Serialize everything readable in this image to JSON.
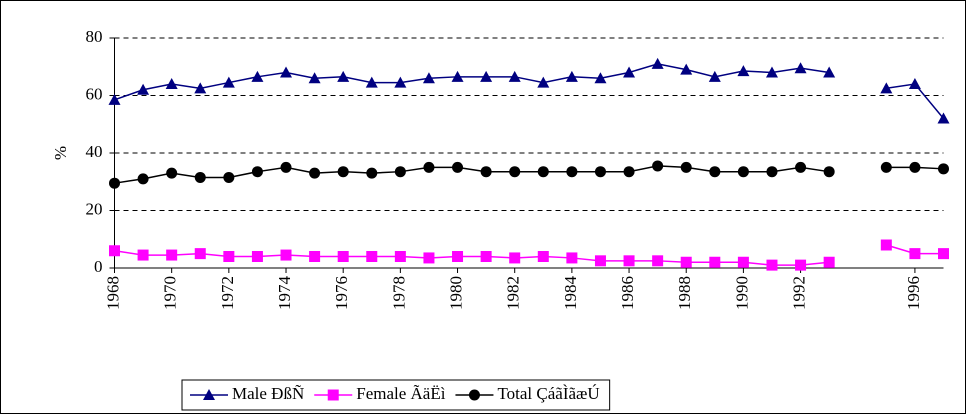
{
  "chart_data": {
    "type": "line",
    "y_label": "%",
    "x": [
      1968,
      1969,
      1970,
      1971,
      1972,
      1973,
      1974,
      1975,
      1976,
      1977,
      1978,
      1979,
      1980,
      1981,
      1982,
      1983,
      1984,
      1985,
      1986,
      1987,
      1988,
      1989,
      1990,
      1991,
      1992,
      1993,
      1994,
      1995,
      1996,
      1997
    ],
    "xlim": [
      1968,
      1997
    ],
    "xticks": [
      1968,
      1970,
      1972,
      1974,
      1976,
      1978,
      1980,
      1982,
      1984,
      1986,
      1988,
      1990,
      1992,
      1996
    ],
    "ylim": [
      0,
      80
    ],
    "yticks": [
      0,
      20,
      40,
      60,
      80
    ],
    "grid": true,
    "legend": "bottom",
    "series": [
      {
        "name": "Male ÐßÑ",
        "color": "#000080",
        "marker": "triangle",
        "values": [
          58.5,
          62,
          64,
          62.5,
          64.5,
          66.5,
          68,
          66,
          66.5,
          64.5,
          64.5,
          66,
          66.5,
          66.5,
          66.5,
          64.5,
          66.5,
          66,
          68,
          71,
          69,
          66.5,
          68.5,
          68,
          69.5,
          68,
          null,
          62.5,
          64,
          52
        ]
      },
      {
        "name": "Female ÃäËì",
        "color": "#ff00ff",
        "marker": "square",
        "values": [
          6,
          4.5,
          4.5,
          5,
          4,
          4,
          4.5,
          4,
          4,
          4,
          4,
          3.5,
          4,
          4,
          3.5,
          4,
          3.5,
          2.5,
          2.5,
          2.5,
          2,
          2,
          2,
          1,
          1,
          2,
          null,
          8,
          5,
          5
        ]
      },
      {
        "name": "Total ÇáãÌãæÚ",
        "color": "#000000",
        "marker": "circle",
        "values": [
          29.5,
          31,
          33,
          31.5,
          31.5,
          33.5,
          35,
          33,
          33.5,
          33,
          33.5,
          35,
          35,
          33.5,
          33.5,
          33.5,
          33.5,
          33.5,
          33.5,
          35.5,
          35,
          33.5,
          33.5,
          33.5,
          35,
          33.5,
          null,
          35,
          35,
          34.5
        ]
      }
    ]
  }
}
